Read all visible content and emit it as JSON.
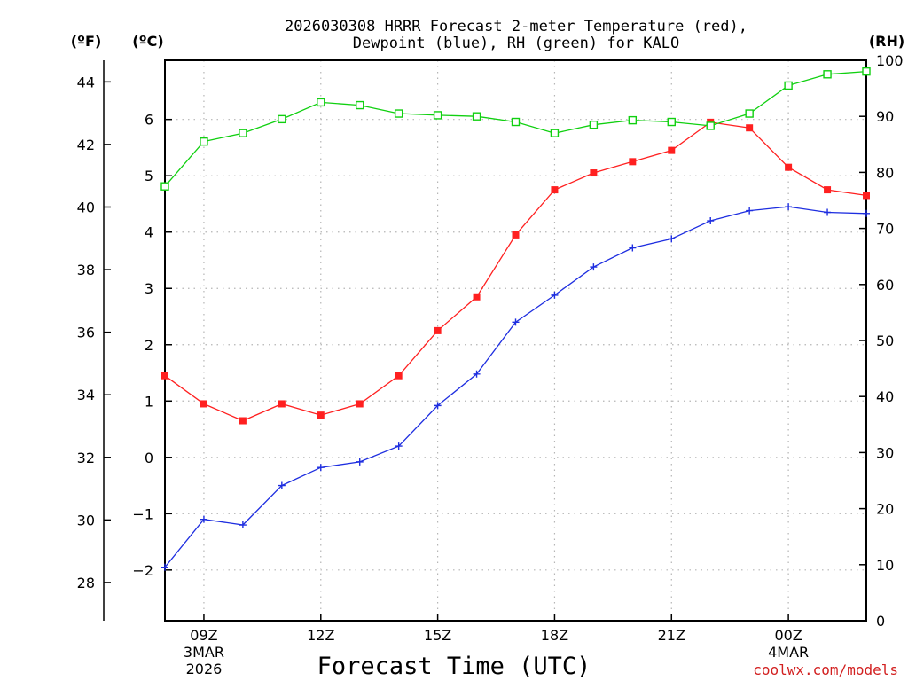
{
  "chart_data": {
    "type": "line",
    "title_line1": "2026030308 HRRR Forecast 2-meter Temperature (red),",
    "title_line2": "Dewpoint (blue), RH (green) for KALO",
    "xlabel": "Forecast Time (UTC)",
    "x_hours": [
      8,
      9,
      10,
      11,
      12,
      13,
      14,
      15,
      16,
      17,
      18,
      19,
      20,
      21,
      22,
      23,
      24,
      25,
      26
    ],
    "x_ticks": [
      {
        "hour": 9,
        "label": "09Z",
        "sub1": "3MAR",
        "sub2": "2026"
      },
      {
        "hour": 12,
        "label": "12Z",
        "sub1": "",
        "sub2": ""
      },
      {
        "hour": 15,
        "label": "15Z",
        "sub1": "",
        "sub2": ""
      },
      {
        "hour": 18,
        "label": "18Z",
        "sub1": "",
        "sub2": ""
      },
      {
        "hour": 21,
        "label": "21Z",
        "sub1": "",
        "sub2": ""
      },
      {
        "hour": 24,
        "label": "00Z",
        "sub1": "4MAR",
        "sub2": ""
      }
    ],
    "y_left_celsius": {
      "unit": "(ºC)",
      "range": [
        -2.9,
        7.05
      ],
      "ticks": [
        -2,
        -1,
        0,
        1,
        2,
        3,
        4,
        5,
        6
      ],
      "tick_labels": [
        "−2",
        "−1",
        "0",
        "1",
        "2",
        "3",
        "4",
        "5",
        "6"
      ]
    },
    "y_far_left_fahrenheit": {
      "unit": "(ºF)",
      "ticks": [
        28,
        30,
        32,
        34,
        36,
        38,
        40,
        42,
        44
      ]
    },
    "y_right_rh": {
      "unit": "(RH)",
      "range": [
        0,
        100
      ],
      "ticks": [
        0,
        10,
        20,
        30,
        40,
        50,
        60,
        70,
        80,
        90,
        100
      ]
    },
    "series": [
      {
        "name": "Temperature",
        "axis": "celsius",
        "color": "#ff2020",
        "marker": "filled-square",
        "values": [
          1.45,
          0.95,
          0.65,
          0.95,
          0.75,
          0.95,
          1.45,
          2.25,
          2.85,
          3.95,
          4.75,
          5.05,
          5.25,
          5.45,
          5.95,
          5.85,
          5.15,
          4.75,
          4.65
        ]
      },
      {
        "name": "Dewpoint",
        "axis": "celsius",
        "color": "#1e2ee0",
        "marker": "plus",
        "values": [
          -1.95,
          -1.1,
          -1.2,
          -0.5,
          -0.18,
          -0.08,
          0.2,
          0.92,
          1.48,
          2.4,
          2.88,
          3.38,
          3.72,
          3.88,
          4.2,
          4.38,
          4.45,
          4.35,
          4.33
        ]
      },
      {
        "name": "RH",
        "axis": "rh",
        "color": "#10d010",
        "marker": "open-square",
        "values": [
          77.5,
          85.5,
          87,
          89.5,
          92.5,
          92,
          90.5,
          90.2,
          90,
          89,
          87,
          88.5,
          89.3,
          89,
          88.3,
          90.5,
          95.5,
          97.5,
          98
        ]
      }
    ]
  },
  "credit": "coolwx.com/models",
  "colors": {
    "credit": "#d22020",
    "frame": "#000000"
  }
}
